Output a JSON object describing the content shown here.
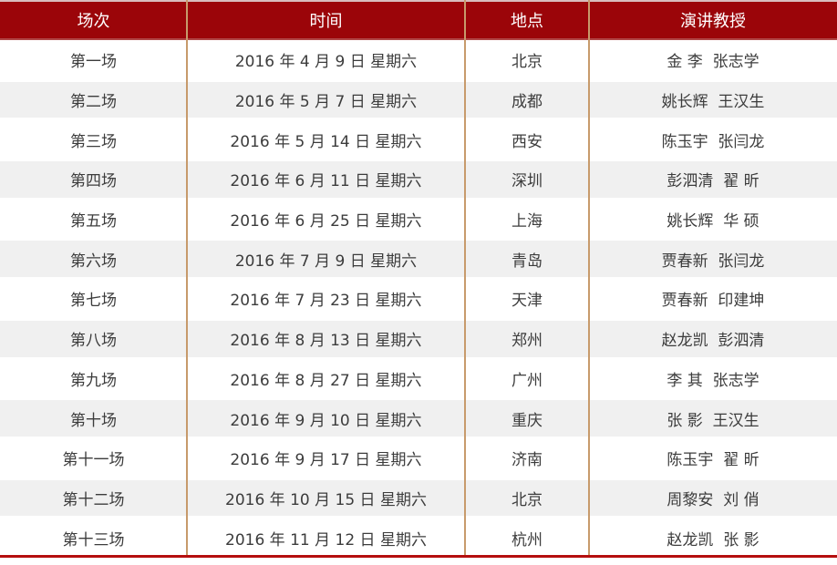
{
  "table": {
    "columns": [
      {
        "key": "session",
        "label": "场次"
      },
      {
        "key": "time",
        "label": "时间"
      },
      {
        "key": "location",
        "label": "地点"
      },
      {
        "key": "professors",
        "label": "演讲教授"
      }
    ],
    "rows": [
      {
        "session": "第一场",
        "time": "2016 年 4 月 9 日 星期六",
        "location": "北京",
        "professors": "金 李  张志学"
      },
      {
        "session": "第二场",
        "time": "2016 年 5 月 7 日 星期六",
        "location": "成都",
        "professors": "姚长辉  王汉生"
      },
      {
        "session": "第三场",
        "time": "2016 年 5 月 14 日 星期六",
        "location": "西安",
        "professors": "陈玉宇  张闫龙"
      },
      {
        "session": "第四场",
        "time": "2016 年 6 月 11 日 星期六",
        "location": "深圳",
        "professors": "彭泗清  翟 昕"
      },
      {
        "session": "第五场",
        "time": "2016 年 6 月 25 日 星期六",
        "location": "上海",
        "professors": "姚长辉  华 硕"
      },
      {
        "session": "第六场",
        "time": "2016 年 7 月 9 日 星期六",
        "location": "青岛",
        "professors": "贾春新  张闫龙"
      },
      {
        "session": "第七场",
        "time": "2016 年 7 月 23 日 星期六",
        "location": "天津",
        "professors": "贾春新  印建坤"
      },
      {
        "session": "第八场",
        "time": "2016 年 8 月 13 日 星期六",
        "location": "郑州",
        "professors": "赵龙凯  彭泗清"
      },
      {
        "session": "第九场",
        "time": "2016 年 8 月 27 日 星期六",
        "location": "广州",
        "professors": "李 其  张志学"
      },
      {
        "session": "第十场",
        "time": "2016 年 9 月 10 日 星期六",
        "location": "重庆",
        "professors": "张 影  王汉生"
      },
      {
        "session": "第十一场",
        "time": "2016 年 9 月 17 日 星期六",
        "location": "济南",
        "professors": "陈玉宇  翟 昕"
      },
      {
        "session": "第十二场",
        "time": "2016 年 10 月 15 日 星期六",
        "location": "北京",
        "professors": "周黎安  刘 俏"
      },
      {
        "session": "第十三场",
        "time": "2016 年 11 月 12 日 星期六",
        "location": "杭州",
        "professors": "赵龙凯  张 影"
      }
    ]
  },
  "colors": {
    "header_bg": "#9B0509",
    "header_text": "#FFFFFF",
    "header_top_border": "#D9BDBD",
    "header_bottom_border": "#B04545",
    "row_alt_bg": "#F0F0F0",
    "row_bg": "#FFFFFF",
    "column_divider": "#C79A6B",
    "bottom_rule": "#B50E0E",
    "body_text": "#3C3C3C"
  }
}
